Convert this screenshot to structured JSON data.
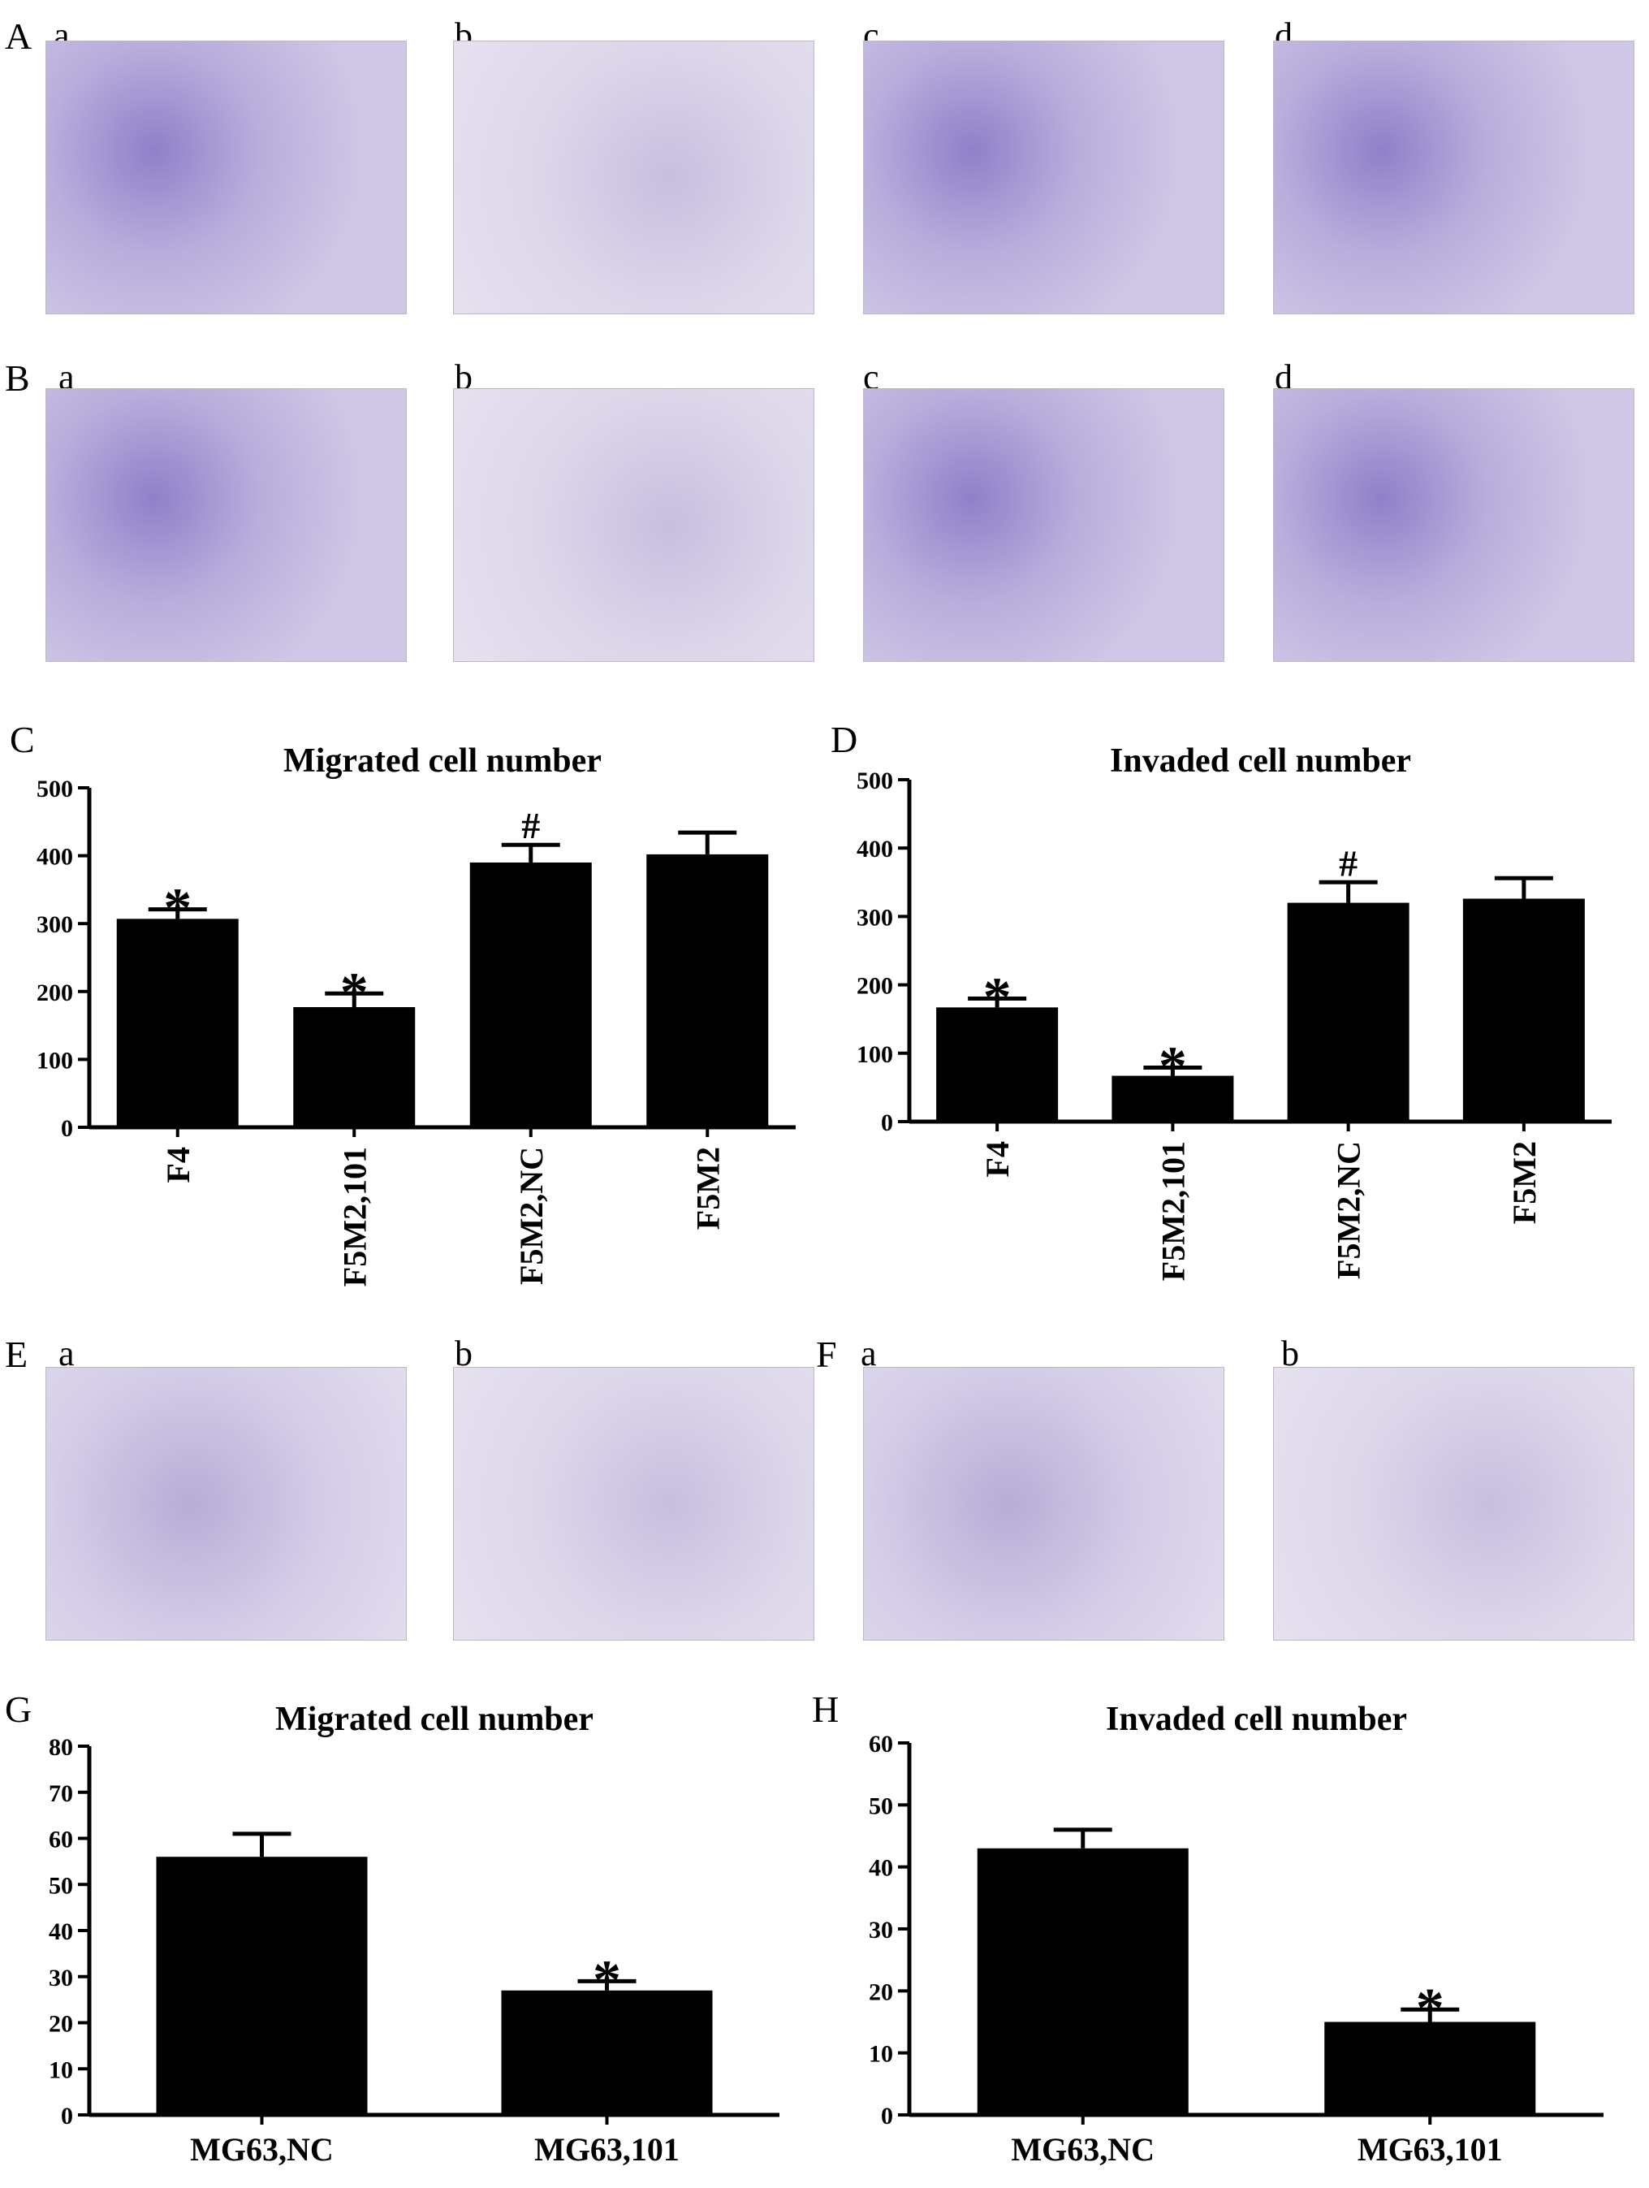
{
  "panels": {
    "A": "A",
    "B": "B",
    "C": "C",
    "D": "D",
    "E": "E",
    "F": "F",
    "G": "G",
    "H": "H"
  },
  "sublabels": {
    "a": "a",
    "b": "b",
    "c": "c",
    "d": "d"
  },
  "chart_data": [
    {
      "id": "C",
      "type": "bar",
      "title": "Migrated cell number",
      "categories": [
        "F4",
        "F5M2,101",
        "F5M2,NC",
        "F5M2"
      ],
      "values": [
        307,
        177,
        390,
        402
      ],
      "errors": [
        14,
        20,
        26,
        32
      ],
      "significance": [
        "*",
        "*",
        "#",
        ""
      ],
      "ylim": [
        0,
        500
      ],
      "yticks": [
        0,
        100,
        200,
        300,
        400,
        500
      ],
      "xlabel_rotation": "vertical"
    },
    {
      "id": "D",
      "type": "bar",
      "title": "Invaded cell number",
      "categories": [
        "F4",
        "F5M2,101",
        "F5M2,NC",
        "F5M2"
      ],
      "values": [
        167,
        67,
        320,
        326
      ],
      "errors": [
        13,
        12,
        30,
        30
      ],
      "significance": [
        "*",
        "*",
        "#",
        ""
      ],
      "ylim": [
        0,
        500
      ],
      "yticks": [
        0,
        100,
        200,
        300,
        400,
        500
      ],
      "xlabel_rotation": "vertical"
    },
    {
      "id": "G",
      "type": "bar",
      "title": "Migrated cell number",
      "categories": [
        "MG63,NC",
        "MG63,101"
      ],
      "values": [
        56,
        27
      ],
      "errors": [
        5,
        2
      ],
      "significance": [
        "",
        "*"
      ],
      "ylim": [
        0,
        80
      ],
      "yticks": [
        0,
        10,
        20,
        30,
        40,
        50,
        60,
        70,
        80
      ],
      "xlabel_rotation": "horizontal"
    },
    {
      "id": "H",
      "type": "bar",
      "title": "Invaded cell number",
      "categories": [
        "MG63,NC",
        "MG63,101"
      ],
      "values": [
        43,
        15
      ],
      "errors": [
        3,
        2
      ],
      "significance": [
        "",
        "*"
      ],
      "ylim": [
        0,
        60
      ],
      "yticks": [
        0,
        10,
        20,
        30,
        40,
        50,
        60
      ],
      "xlabel_rotation": "horizontal"
    }
  ]
}
